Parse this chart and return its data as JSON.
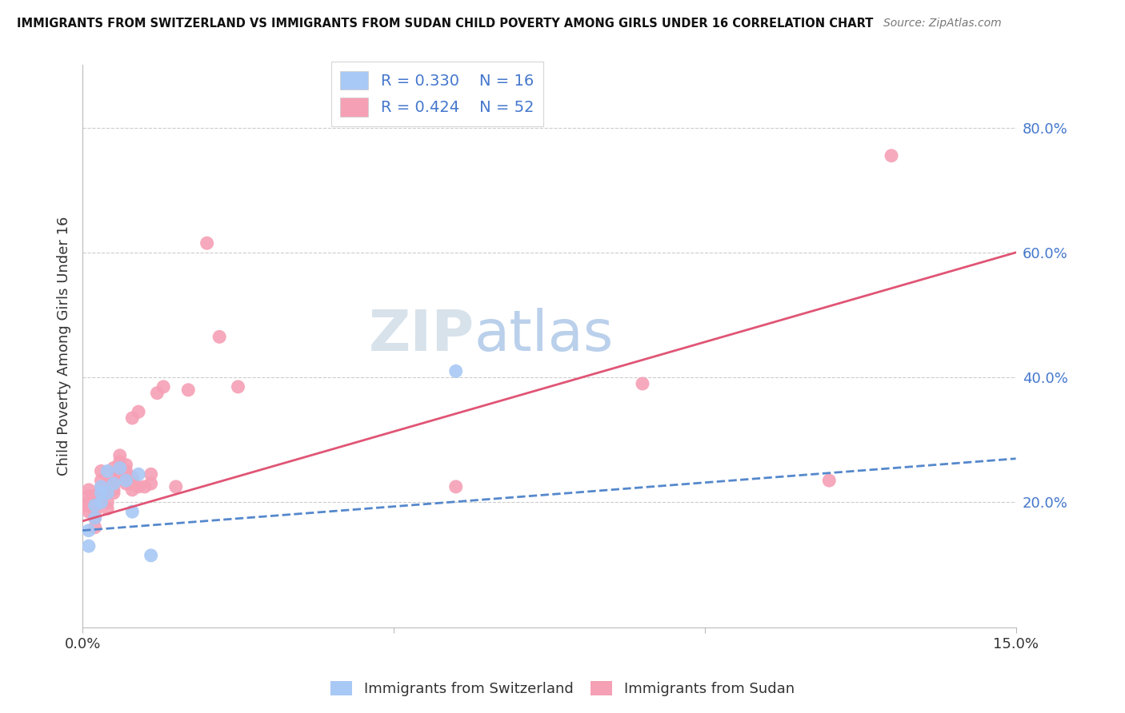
{
  "title": "IMMIGRANTS FROM SWITZERLAND VS IMMIGRANTS FROM SUDAN CHILD POVERTY AMONG GIRLS UNDER 16 CORRELATION CHART",
  "source": "Source: ZipAtlas.com",
  "ylabel": "Child Poverty Among Girls Under 16",
  "right_yticks": [
    20.0,
    40.0,
    60.0,
    80.0
  ],
  "legend_blue_R": "R = 0.330",
  "legend_blue_N": "N = 16",
  "legend_pink_R": "R = 0.424",
  "legend_pink_N": "N = 52",
  "blue_color": "#a8c8f5",
  "blue_line_color": "#5588cc",
  "pink_color": "#f5a0b5",
  "pink_line_color": "#e05575",
  "watermark_zip": "ZIP",
  "watermark_atlas": "atlas",
  "blue_scatter_x": [
    0.001,
    0.001,
    0.002,
    0.002,
    0.003,
    0.003,
    0.003,
    0.004,
    0.004,
    0.005,
    0.006,
    0.007,
    0.008,
    0.009,
    0.011,
    0.06
  ],
  "blue_scatter_y": [
    0.155,
    0.13,
    0.175,
    0.195,
    0.2,
    0.225,
    0.215,
    0.25,
    0.215,
    0.23,
    0.255,
    0.235,
    0.185,
    0.245,
    0.115,
    0.41
  ],
  "pink_scatter_x": [
    0.0005,
    0.001,
    0.001,
    0.001,
    0.001,
    0.002,
    0.002,
    0.002,
    0.002,
    0.002,
    0.003,
    0.003,
    0.003,
    0.003,
    0.003,
    0.004,
    0.004,
    0.004,
    0.004,
    0.005,
    0.005,
    0.005,
    0.005,
    0.005,
    0.006,
    0.006,
    0.006,
    0.006,
    0.007,
    0.007,
    0.007,
    0.007,
    0.008,
    0.008,
    0.008,
    0.008,
    0.009,
    0.009,
    0.01,
    0.011,
    0.011,
    0.012,
    0.013,
    0.015,
    0.017,
    0.02,
    0.022,
    0.025,
    0.06,
    0.09,
    0.12,
    0.13
  ],
  "pink_scatter_y": [
    0.195,
    0.185,
    0.2,
    0.21,
    0.22,
    0.16,
    0.175,
    0.185,
    0.195,
    0.21,
    0.205,
    0.215,
    0.225,
    0.235,
    0.25,
    0.19,
    0.2,
    0.215,
    0.23,
    0.22,
    0.215,
    0.23,
    0.24,
    0.255,
    0.245,
    0.255,
    0.265,
    0.275,
    0.23,
    0.24,
    0.25,
    0.26,
    0.22,
    0.23,
    0.24,
    0.335,
    0.345,
    0.225,
    0.225,
    0.245,
    0.23,
    0.375,
    0.385,
    0.225,
    0.38,
    0.615,
    0.465,
    0.385,
    0.225,
    0.39,
    0.235,
    0.755
  ],
  "xmin": 0.0,
  "xmax": 0.15,
  "ymin": 0.0,
  "ymax": 0.9,
  "blue_line_x0": 0.0,
  "blue_line_x1": 0.15,
  "blue_line_y0": 0.155,
  "blue_line_y1": 0.27,
  "pink_line_x0": 0.0,
  "pink_line_x1": 0.15,
  "pink_line_y0": 0.17,
  "pink_line_y1": 0.6,
  "grid_color": "#cccccc",
  "grid_yticks": [
    0.2,
    0.4,
    0.6,
    0.8
  ],
  "xtick_positions": [
    0.0,
    0.05,
    0.1,
    0.15
  ],
  "xtick_labels": [
    "0.0%",
    "",
    "",
    "15.0%"
  ]
}
